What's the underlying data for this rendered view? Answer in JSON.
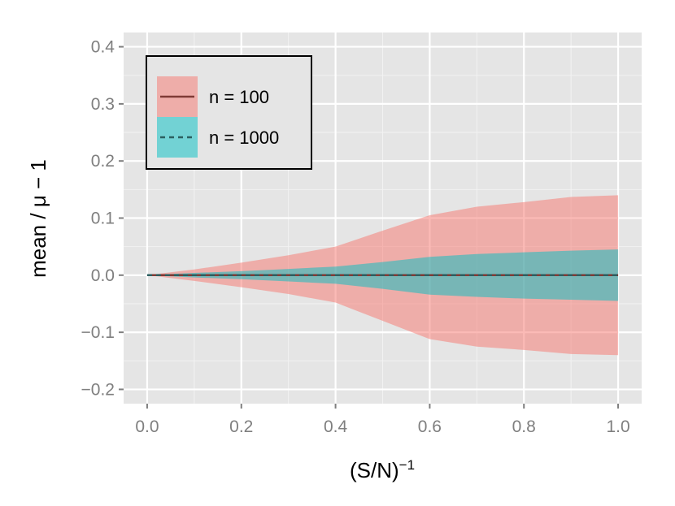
{
  "chart_data": {
    "type": "area",
    "x_axis": {
      "label": "(S/N)",
      "label_superscript": "−1",
      "lim": [
        -0.05,
        1.05
      ],
      "ticks": [
        0.0,
        0.2,
        0.4,
        0.6,
        0.8,
        1.0
      ],
      "tick_labels": [
        "0.0",
        "0.2",
        "0.4",
        "0.6",
        "0.8",
        "1.0"
      ]
    },
    "y_axis": {
      "label": "mean / μ  − 1",
      "lim": [
        -0.225,
        0.425
      ],
      "ticks": [
        -0.2,
        -0.1,
        0.0,
        0.1,
        0.2,
        0.3,
        0.4
      ],
      "tick_labels": [
        "−0.2",
        "−0.1",
        "0.0",
        "0.1",
        "0.2",
        "0.3",
        "0.4"
      ]
    },
    "grid": true,
    "panel_background": "#e5e5e5",
    "legend": {
      "position": "top-left",
      "entries": [
        "n = 100",
        "n = 1000"
      ]
    },
    "series": [
      {
        "name": "n = 100",
        "fill_color": "#f8766d",
        "fill_opacity": 0.5,
        "line_color": "#7f3b36",
        "line_style": "solid",
        "x": [
          0.0,
          0.1,
          0.2,
          0.3,
          0.4,
          0.5,
          0.6,
          0.7,
          0.8,
          0.9,
          1.0
        ],
        "mean": [
          0.0,
          0.0,
          0.0,
          0.0,
          0.0,
          0.0,
          0.0,
          0.0,
          0.0,
          0.0,
          0.0
        ],
        "upper": [
          0.0,
          0.01,
          0.022,
          0.035,
          0.05,
          0.078,
          0.105,
          0.12,
          0.128,
          0.137,
          0.14
        ],
        "lower": [
          0.0,
          -0.01,
          -0.021,
          -0.033,
          -0.048,
          -0.08,
          -0.112,
          -0.125,
          -0.131,
          -0.138,
          -0.14
        ]
      },
      {
        "name": "n = 1000",
        "fill_color": "#00bfc4",
        "fill_opacity": 0.5,
        "line_color": "#2c5f60",
        "line_style": "dashed",
        "x": [
          0.0,
          0.1,
          0.2,
          0.3,
          0.4,
          0.5,
          0.6,
          0.7,
          0.8,
          0.9,
          1.0
        ],
        "mean": [
          0.0,
          0.0,
          0.0,
          0.0,
          0.0,
          0.0,
          0.0,
          0.0,
          0.0,
          0.0,
          0.0
        ],
        "upper": [
          0.0,
          0.004,
          0.007,
          0.011,
          0.015,
          0.023,
          0.032,
          0.037,
          0.04,
          0.043,
          0.045
        ],
        "lower": [
          0.0,
          -0.004,
          -0.007,
          -0.011,
          -0.015,
          -0.024,
          -0.034,
          -0.038,
          -0.041,
          -0.043,
          -0.045
        ]
      }
    ]
  }
}
